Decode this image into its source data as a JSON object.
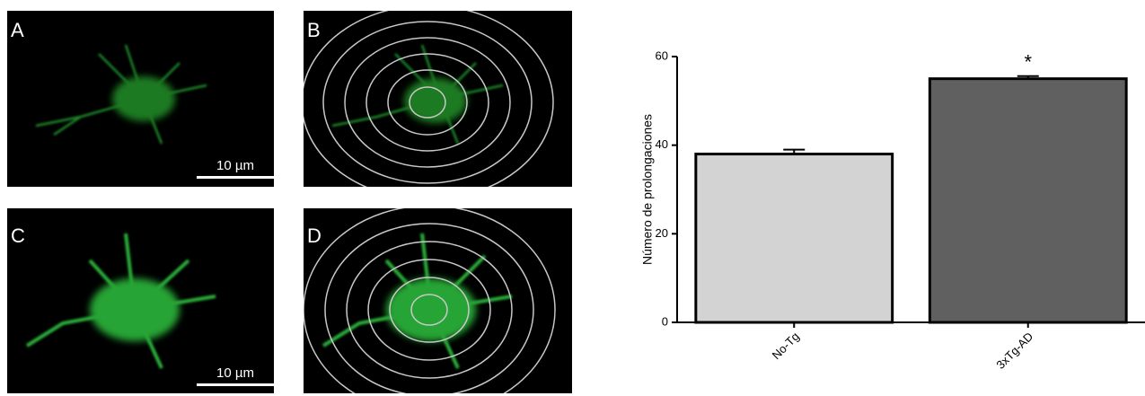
{
  "panels": [
    {
      "label": "A",
      "scale_bar": "10 µm"
    },
    {
      "label": "B"
    },
    {
      "label": "C",
      "scale_bar": "10 µm"
    },
    {
      "label": "D"
    }
  ],
  "chart_data": {
    "type": "bar",
    "ylabel": "Número de prolongaciones",
    "categories": [
      "No-Tg",
      "3xTg-AD"
    ],
    "values": [
      38,
      55
    ],
    "errors": [
      1,
      0.6
    ],
    "colors": [
      "#d3d3d3",
      "#606060"
    ],
    "ylim": [
      0,
      60
    ],
    "yticks": [
      0,
      20,
      40,
      60
    ],
    "annotations": [
      {
        "text": "*",
        "x": "3xTg-AD"
      }
    ]
  }
}
